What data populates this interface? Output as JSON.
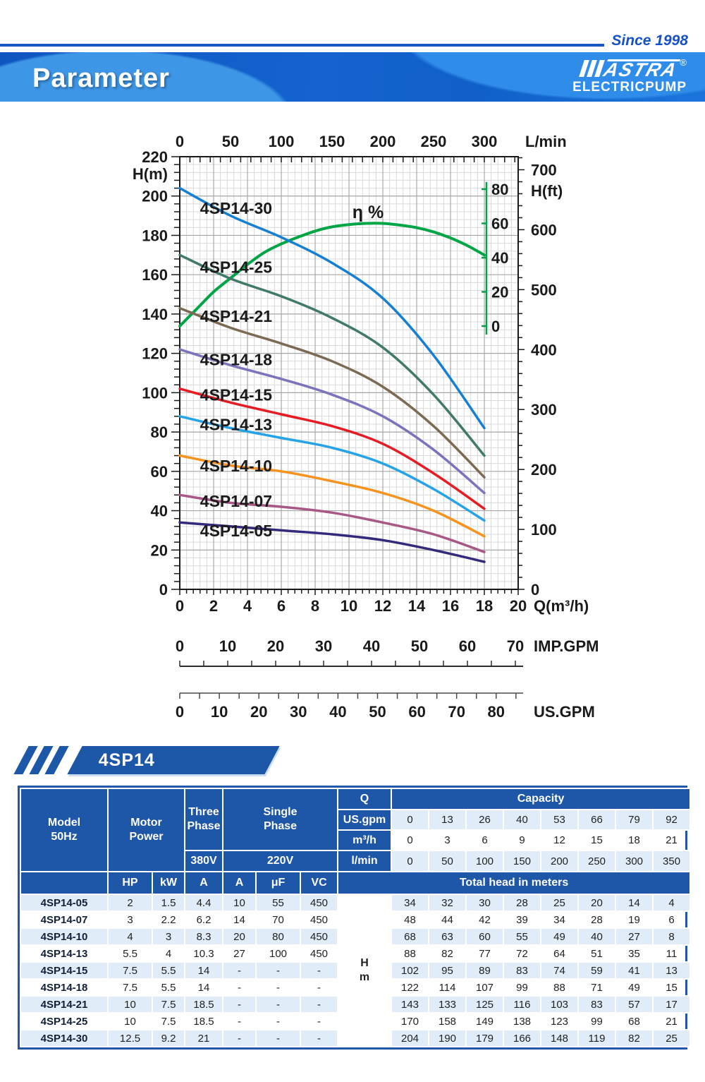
{
  "header": {
    "since_label": "Since 1998",
    "page_title": "Parameter",
    "brand": {
      "name": "MASTRA",
      "mark_text": "ASTRA",
      "registered": "®",
      "sub": "ELECTRICPUMP"
    }
  },
  "section": {
    "title": "4SP14"
  },
  "chart_data": {
    "type": "line",
    "title": "4SP14 pump performance curves",
    "axes": {
      "left": {
        "label": "H(m)",
        "min": 0,
        "max": 220,
        "major_step": 20,
        "minor_step": 4
      },
      "right": {
        "label": "H(ft)",
        "min": 0,
        "max": 700,
        "major_step": 100,
        "minor_step": 20
      },
      "top": {
        "label": "L/min",
        "ticks": [
          0,
          50,
          100,
          150,
          200,
          250,
          300
        ],
        "minor_step": 10
      },
      "bottom": {
        "label": "Q(m³/h)",
        "min": 0,
        "max": 20,
        "major_step": 2,
        "minor_step": 0.4
      },
      "eta": {
        "ticks": [
          0,
          20,
          40,
          60,
          80
        ]
      },
      "imp": {
        "label": "IMP.GPM",
        "labels": [
          0,
          10,
          20,
          30,
          40,
          50,
          60,
          70
        ],
        "tick_step": 5
      },
      "us": {
        "label": "US.GPM",
        "labels": [
          0,
          10,
          20,
          30,
          40,
          50,
          60,
          70,
          80
        ],
        "tick_step": 5
      }
    },
    "q_values": [
      0,
      3,
      6,
      9,
      12,
      15,
      18
    ],
    "series": [
      {
        "name": "4SP14-30",
        "color": "#1580d2",
        "heads": [
          204,
          190,
          179,
          166,
          148,
          119,
          82
        ],
        "label_q": 1.2,
        "label_h": 191
      },
      {
        "name": "4SP14-25",
        "color": "#41796a",
        "heads": [
          170,
          158,
          149,
          138,
          123,
          99,
          68
        ],
        "label_q": 1.2,
        "label_h": 161
      },
      {
        "name": "4SP14-21",
        "color": "#7c6a53",
        "heads": [
          143,
          133,
          125,
          116,
          103,
          83,
          57
        ],
        "label_q": 1.2,
        "label_h": 136
      },
      {
        "name": "4SP14-18",
        "color": "#7b74bd",
        "heads": [
          122,
          114,
          107,
          99,
          88,
          71,
          49
        ],
        "label_q": 1.2,
        "label_h": 114
      },
      {
        "name": "4SP14-15",
        "color": "#e51c23",
        "heads": [
          102,
          95,
          89,
          83,
          74,
          59,
          41
        ],
        "label_q": 1.2,
        "label_h": 96
      },
      {
        "name": "4SP14-13",
        "color": "#25a3e6",
        "heads": [
          88,
          82,
          77,
          72,
          64,
          51,
          35
        ],
        "label_q": 1.2,
        "label_h": 81
      },
      {
        "name": "4SP14-10",
        "color": "#f6921e",
        "heads": [
          68,
          63,
          60,
          55,
          49,
          40,
          27
        ],
        "label_q": 1.2,
        "label_h": 60
      },
      {
        "name": "4SP14-07",
        "color": "#a85886",
        "heads": [
          48,
          44,
          42,
          39,
          34,
          28,
          19
        ],
        "label_q": 1.2,
        "label_h": 42
      },
      {
        "name": "4SP14-05",
        "color": "#332a7e",
        "heads": [
          34,
          32,
          30,
          28,
          25,
          20,
          14
        ],
        "label_q": 1.2,
        "label_h": 27
      }
    ],
    "efficiency": {
      "label": "η %",
      "color": "#00a546",
      "label_q": 10.2,
      "label_eta": 63,
      "points": [
        [
          0,
          0
        ],
        [
          1,
          10
        ],
        [
          2,
          20
        ],
        [
          3,
          28
        ],
        [
          4,
          36
        ],
        [
          5,
          43
        ],
        [
          6,
          48
        ],
        [
          7,
          52
        ],
        [
          8,
          55.5
        ],
        [
          9,
          58
        ],
        [
          10,
          59.3
        ],
        [
          11,
          60
        ],
        [
          12,
          60
        ],
        [
          13,
          59
        ],
        [
          14,
          57.5
        ],
        [
          15,
          55
        ],
        [
          16,
          51.5
        ],
        [
          17,
          47
        ],
        [
          18,
          41.5
        ]
      ]
    }
  },
  "table": {
    "header": {
      "model_line1": "Model",
      "model_line2": "50Hz",
      "motor_line1": "Motor",
      "motor_line2": "Power",
      "three_line1": "Three",
      "three_line2": "Phase",
      "single_line1": "Single",
      "single_line2": "Phase",
      "v380": "380V",
      "v220": "220V",
      "q": "Q",
      "capacity": "Capacity",
      "sub_cols": [
        "HP",
        "kW",
        "A",
        "A",
        "μF",
        "VC"
      ],
      "total_head": "Total head in meters",
      "hm_line1": "H",
      "hm_line2": "m"
    },
    "capacity_rows": [
      {
        "label": "US.gpm",
        "values": [
          "0",
          "13",
          "26",
          "40",
          "53",
          "66",
          "79",
          "92"
        ],
        "shade": true
      },
      {
        "label": "m³/h",
        "values": [
          "0",
          "3",
          "6",
          "9",
          "12",
          "15",
          "18",
          "21"
        ],
        "shade": false
      },
      {
        "label": "l/min",
        "values": [
          "0",
          "50",
          "100",
          "150",
          "200",
          "250",
          "300",
          "350"
        ],
        "shade": true
      }
    ],
    "rows": [
      {
        "model": "4SP14-05",
        "specs": [
          "2",
          "1.5",
          "4.4",
          "10",
          "55",
          "450"
        ],
        "heads": [
          "34",
          "32",
          "30",
          "28",
          "25",
          "20",
          "14",
          "4"
        ]
      },
      {
        "model": "4SP14-07",
        "specs": [
          "3",
          "2.2",
          "6.2",
          "14",
          "70",
          "450"
        ],
        "heads": [
          "48",
          "44",
          "42",
          "39",
          "34",
          "28",
          "19",
          "6"
        ]
      },
      {
        "model": "4SP14-10",
        "specs": [
          "4",
          "3",
          "8.3",
          "20",
          "80",
          "450"
        ],
        "heads": [
          "68",
          "63",
          "60",
          "55",
          "49",
          "40",
          "27",
          "8"
        ]
      },
      {
        "model": "4SP14-13",
        "specs": [
          "5.5",
          "4",
          "10.3",
          "27",
          "100",
          "450"
        ],
        "heads": [
          "88",
          "82",
          "77",
          "72",
          "64",
          "51",
          "35",
          "11"
        ]
      },
      {
        "model": "4SP14-15",
        "specs": [
          "7.5",
          "5.5",
          "14",
          "-",
          "-",
          "-"
        ],
        "heads": [
          "102",
          "95",
          "89",
          "83",
          "74",
          "59",
          "41",
          "13"
        ]
      },
      {
        "model": "4SP14-18",
        "specs": [
          "7.5",
          "5.5",
          "14",
          "-",
          "-",
          "-"
        ],
        "heads": [
          "122",
          "114",
          "107",
          "99",
          "88",
          "71",
          "49",
          "15"
        ]
      },
      {
        "model": "4SP14-21",
        "specs": [
          "10",
          "7.5",
          "18.5",
          "-",
          "-",
          "-"
        ],
        "heads": [
          "143",
          "133",
          "125",
          "116",
          "103",
          "83",
          "57",
          "17"
        ]
      },
      {
        "model": "4SP14-25",
        "specs": [
          "10",
          "7.5",
          "18.5",
          "-",
          "-",
          "-"
        ],
        "heads": [
          "170",
          "158",
          "149",
          "138",
          "123",
          "99",
          "68",
          "21"
        ]
      },
      {
        "model": "4SP14-30",
        "specs": [
          "12.5",
          "9.2",
          "21",
          "-",
          "-",
          "-"
        ],
        "heads": [
          "204",
          "190",
          "179",
          "166",
          "148",
          "119",
          "82",
          "25"
        ]
      }
    ]
  }
}
